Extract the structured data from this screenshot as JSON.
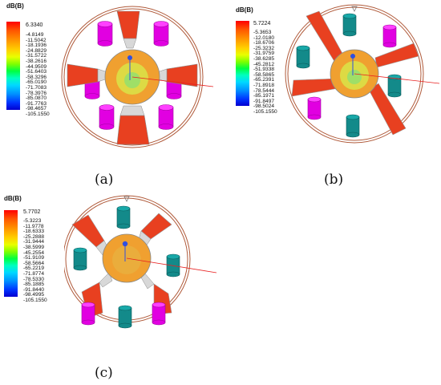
{
  "panels": [
    {
      "label": "(a)",
      "legend": {
        "title": "dB(B)",
        "max": "6.3340",
        "ticks": [
          "-4.8149",
          "-11.5042",
          "-18.1936",
          "-24.8829",
          "-31.5722",
          "-38.2616",
          "-44.9509",
          "-51.6403",
          "-58.3296",
          "-65.0190",
          "-71.7083",
          "-78.3976",
          "-85.0870",
          "-91.7763",
          "-98.4657",
          "-105.1550"
        ]
      }
    },
    {
      "label": "(b)",
      "legend": {
        "title": "dB(B)",
        "max": "5.7224",
        "ticks": [
          "-5.3653",
          "-12.0180",
          "-18.6706",
          "-25.3232",
          "-31.9759",
          "-38.6285",
          "-45.2812",
          "-51.9338",
          "-58.5865",
          "-65.2391",
          "-71.8918",
          "-78.5444",
          "-85.1971",
          "-91.8497",
          "-98.5024",
          "-105.1550"
        ]
      }
    },
    {
      "label": "(c)",
      "legend": {
        "title": "dB(B)",
        "max": "5.7702",
        "ticks": [
          "-5.3223",
          "-11.9778",
          "-18.6333",
          "-25.2888",
          "-31.9444",
          "-38.5999",
          "-45.2554",
          "-51.9109",
          "-58.5664",
          "-65.2219",
          "-71.8774",
          "-78.5330",
          "-85.1885",
          "-91.8440",
          "-98.4995",
          "-105.1550"
        ]
      }
    }
  ],
  "colors": {
    "ring": "#b05a3a",
    "magenta_cylinder": "#e100e1",
    "teal_cylinder": "#138a8a",
    "field_hot": "#e84020",
    "field_core": "#f0a030",
    "probe_line": "#e82020",
    "probe_tip": "#3050e0"
  }
}
